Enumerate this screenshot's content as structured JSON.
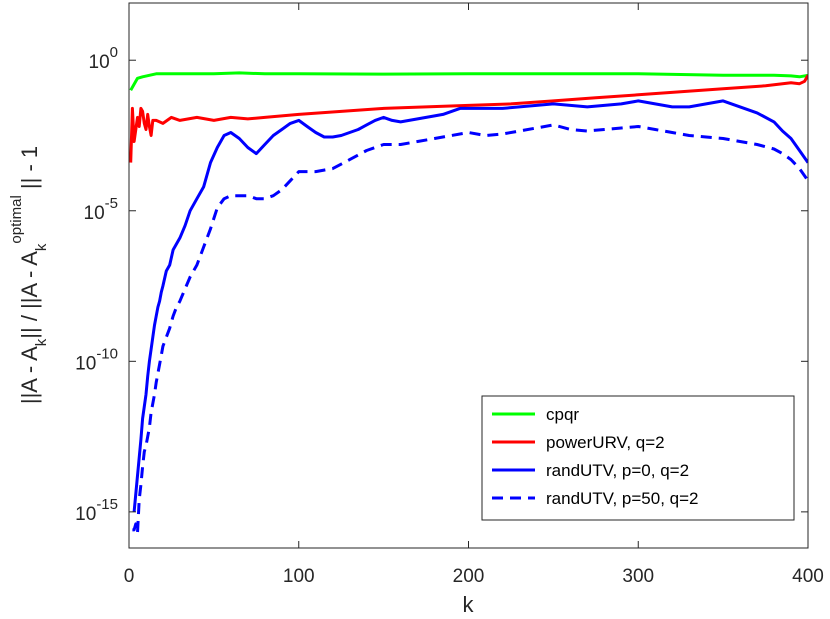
{
  "chart_data": {
    "type": "line",
    "xlabel": "k",
    "ylabel": {
      "parts": [
        {
          "text": "||A - A",
          "role": "normal"
        },
        {
          "text": "k",
          "role": "sub"
        },
        {
          "text": "|| / ||A - A",
          "role": "normal"
        },
        {
          "text": "k",
          "role": "sub"
        },
        {
          "text": "optimal",
          "role": "sup"
        },
        {
          "text": " || - 1",
          "role": "normal"
        }
      ]
    },
    "xlim": [
      0,
      400
    ],
    "ylim_log10": [
      -16.2,
      1.9
    ],
    "yscale": "log",
    "grid": false,
    "legend_position": "bottom-right",
    "xticks": [
      {
        "value": 0,
        "label": "0"
      },
      {
        "value": 100,
        "label": "100"
      },
      {
        "value": 200,
        "label": "200"
      },
      {
        "value": 300,
        "label": "300"
      },
      {
        "value": 400,
        "label": "400"
      }
    ],
    "yticks": [
      {
        "exp": 0,
        "base": "10",
        "sup": "0"
      },
      {
        "exp": -5,
        "base": "10",
        "sup": "-5"
      },
      {
        "exp": -10,
        "base": "10",
        "sup": "-10"
      },
      {
        "exp": -15,
        "base": "10",
        "sup": "-15"
      }
    ],
    "series": [
      {
        "name": "cpqr",
        "color": "#00ff00",
        "style": "solid",
        "x": [
          1,
          3,
          5,
          8,
          12,
          16,
          20,
          30,
          40,
          50,
          65,
          80,
          100,
          150,
          200,
          250,
          300,
          350,
          380,
          390,
          395,
          400
        ],
        "y_log10": [
          -1.0,
          -0.8,
          -0.6,
          -0.55,
          -0.5,
          -0.45,
          -0.45,
          -0.45,
          -0.45,
          -0.45,
          -0.42,
          -0.45,
          -0.45,
          -0.46,
          -0.45,
          -0.45,
          -0.45,
          -0.5,
          -0.5,
          -0.52,
          -0.55,
          -0.5
        ]
      },
      {
        "name": "powerURV, q=2",
        "color": "#ff0000",
        "style": "solid",
        "x": [
          1,
          2,
          3,
          4,
          5,
          6,
          7,
          8,
          9,
          10,
          11,
          12,
          13,
          14,
          15,
          16,
          18,
          20,
          25,
          30,
          40,
          50,
          60,
          70,
          80,
          100,
          125,
          150,
          175,
          200,
          225,
          250,
          275,
          300,
          325,
          350,
          375,
          390,
          395,
          398,
          400
        ],
        "y_log10": [
          -3.4,
          -1.6,
          -2.7,
          -2.3,
          -1.9,
          -2.2,
          -1.6,
          -1.7,
          -2.1,
          -2.3,
          -1.8,
          -2.2,
          -2.5,
          -2.0,
          -2.0,
          -2.0,
          -2.05,
          -2.1,
          -1.9,
          -2.0,
          -1.9,
          -2.0,
          -1.9,
          -1.95,
          -1.9,
          -1.8,
          -1.7,
          -1.6,
          -1.55,
          -1.5,
          -1.45,
          -1.35,
          -1.25,
          -1.15,
          -1.05,
          -0.95,
          -0.85,
          -0.75,
          -0.78,
          -0.7,
          -0.5
        ]
      },
      {
        "name": "randUTV, p=0, q=2",
        "color": "#0000ff",
        "style": "solid",
        "x": [
          3,
          4,
          5,
          6,
          7,
          8,
          9,
          10,
          11,
          12,
          13,
          14,
          15,
          16,
          17,
          18,
          19,
          20,
          22,
          24,
          26,
          28,
          30,
          33,
          36,
          40,
          44,
          48,
          52,
          56,
          60,
          65,
          70,
          75,
          80,
          85,
          90,
          95,
          100,
          105,
          110,
          115,
          120,
          125,
          130,
          135,
          140,
          145,
          150,
          155,
          160,
          165,
          170,
          175,
          180,
          185,
          190,
          195,
          200,
          210,
          220,
          230,
          240,
          250,
          260,
          270,
          280,
          290,
          300,
          310,
          320,
          330,
          340,
          350,
          360,
          370,
          380,
          385,
          390,
          395,
          400
        ],
        "y_log10": [
          -15.0,
          -14.4,
          -13.8,
          -13.2,
          -12.6,
          -11.9,
          -11.5,
          -11.1,
          -10.5,
          -10.0,
          -9.6,
          -9.2,
          -8.8,
          -8.5,
          -8.2,
          -8.0,
          -7.7,
          -7.5,
          -7.0,
          -6.8,
          -6.3,
          -6.1,
          -5.9,
          -5.5,
          -5.0,
          -4.6,
          -4.2,
          -3.4,
          -2.9,
          -2.5,
          -2.4,
          -2.6,
          -2.9,
          -3.1,
          -2.8,
          -2.5,
          -2.3,
          -2.1,
          -2.0,
          -2.2,
          -2.4,
          -2.55,
          -2.55,
          -2.5,
          -2.4,
          -2.3,
          -2.15,
          -2.0,
          -1.9,
          -2.0,
          -2.05,
          -2.0,
          -1.95,
          -1.9,
          -1.85,
          -1.8,
          -1.7,
          -1.6,
          -1.6,
          -1.6,
          -1.6,
          -1.55,
          -1.5,
          -1.45,
          -1.5,
          -1.55,
          -1.5,
          -1.45,
          -1.35,
          -1.45,
          -1.55,
          -1.55,
          -1.45,
          -1.35,
          -1.55,
          -1.75,
          -2.05,
          -2.35,
          -2.6,
          -3.0,
          -3.4
        ]
      },
      {
        "name": "randUTV, p=50, q=2",
        "color": "#0000ff",
        "style": "dashed",
        "x": [
          2,
          3,
          4,
          5,
          6,
          7,
          8,
          9,
          10,
          11,
          12,
          13,
          14,
          15,
          16,
          17,
          18,
          19,
          20,
          22,
          24,
          26,
          28,
          30,
          33,
          36,
          40,
          44,
          48,
          52,
          56,
          60,
          65,
          70,
          75,
          80,
          85,
          90,
          95,
          100,
          110,
          120,
          130,
          140,
          150,
          160,
          170,
          180,
          190,
          200,
          210,
          220,
          230,
          240,
          250,
          260,
          270,
          280,
          290,
          300,
          310,
          320,
          330,
          340,
          350,
          360,
          370,
          380,
          385,
          390,
          395,
          400
        ],
        "y_log10": [
          -15.6,
          -15.6,
          -15.4,
          -15.7,
          -14.6,
          -14.1,
          -13.5,
          -13.0,
          -12.8,
          -12.5,
          -12.2,
          -11.7,
          -11.4,
          -11.1,
          -10.7,
          -10.4,
          -10.1,
          -9.8,
          -9.5,
          -9.2,
          -8.9,
          -8.5,
          -8.2,
          -8.0,
          -7.6,
          -7.2,
          -6.8,
          -6.2,
          -5.6,
          -4.9,
          -4.6,
          -4.5,
          -4.5,
          -4.5,
          -4.6,
          -4.6,
          -4.5,
          -4.3,
          -4.0,
          -3.7,
          -3.7,
          -3.6,
          -3.3,
          -3.0,
          -2.8,
          -2.8,
          -2.7,
          -2.6,
          -2.5,
          -2.4,
          -2.5,
          -2.45,
          -2.35,
          -2.25,
          -2.15,
          -2.3,
          -2.35,
          -2.3,
          -2.25,
          -2.2,
          -2.3,
          -2.4,
          -2.5,
          -2.55,
          -2.6,
          -2.7,
          -2.8,
          -2.95,
          -3.1,
          -3.3,
          -3.6,
          -4.0
        ]
      }
    ]
  }
}
